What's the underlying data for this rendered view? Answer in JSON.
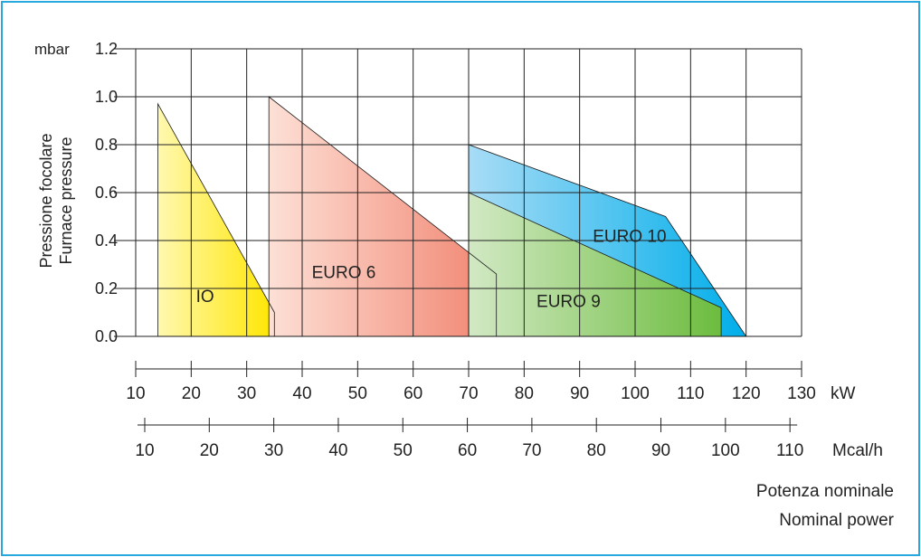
{
  "chart_data": {
    "type": "area",
    "y_unit": "mbar",
    "ylabel_lines": [
      "Pressione focolare",
      "Furnace pressure"
    ],
    "y_ticks": [
      "0.0",
      "0.2",
      "0.4",
      "0.6",
      "0.8",
      "1.0",
      "1.2"
    ],
    "ylim": [
      0,
      1.2
    ],
    "xlim": [
      10,
      130
    ],
    "x_unit": "kW",
    "x_ticks": [
      "10",
      "20",
      "30",
      "40",
      "50",
      "60",
      "70",
      "80",
      "90",
      "100",
      "110",
      "120",
      "130"
    ],
    "x2_unit": "Mcal/h",
    "x2_ticks": [
      "10",
      "20",
      "30",
      "40",
      "50",
      "60",
      "70",
      "80",
      "90",
      "100",
      "110"
    ],
    "xlabel_lines": [
      "Potenza nominale",
      "Nominal power"
    ],
    "grid": true,
    "series": [
      {
        "name": "IO",
        "x": [
          14,
          14,
          35,
          35
        ],
        "y": [
          0,
          0.97,
          0.1,
          0
        ],
        "color_start": "#fff8b0",
        "color_end": "#ffe600"
      },
      {
        "name": "EURO 6",
        "x": [
          34,
          34,
          75,
          75
        ],
        "y": [
          0,
          1.0,
          0.26,
          0
        ],
        "color_start": "#fde0d6",
        "color_end": "#f18470"
      },
      {
        "name": "EURO 10",
        "x": [
          70,
          70,
          105.5,
          120,
          120
        ],
        "y": [
          0,
          0.8,
          0.5,
          0,
          0
        ],
        "color_start": "#a8dcf6",
        "color_end": "#00aeea"
      },
      {
        "name": "EURO 9",
        "x": [
          70,
          70,
          115.5,
          115.5
        ],
        "y": [
          0,
          0.6,
          0.12,
          0
        ],
        "color_start": "#d2e9c4",
        "color_end": "#6cbc3e"
      }
    ],
    "labels": [
      {
        "text": "IO",
        "x": 22.5,
        "y": 0.17
      },
      {
        "text": "EURO 6",
        "x": 47.5,
        "y": 0.27
      },
      {
        "text": "EURO 10",
        "x": 99,
        "y": 0.42
      },
      {
        "text": "EURO 9",
        "x": 88,
        "y": 0.15
      }
    ]
  }
}
